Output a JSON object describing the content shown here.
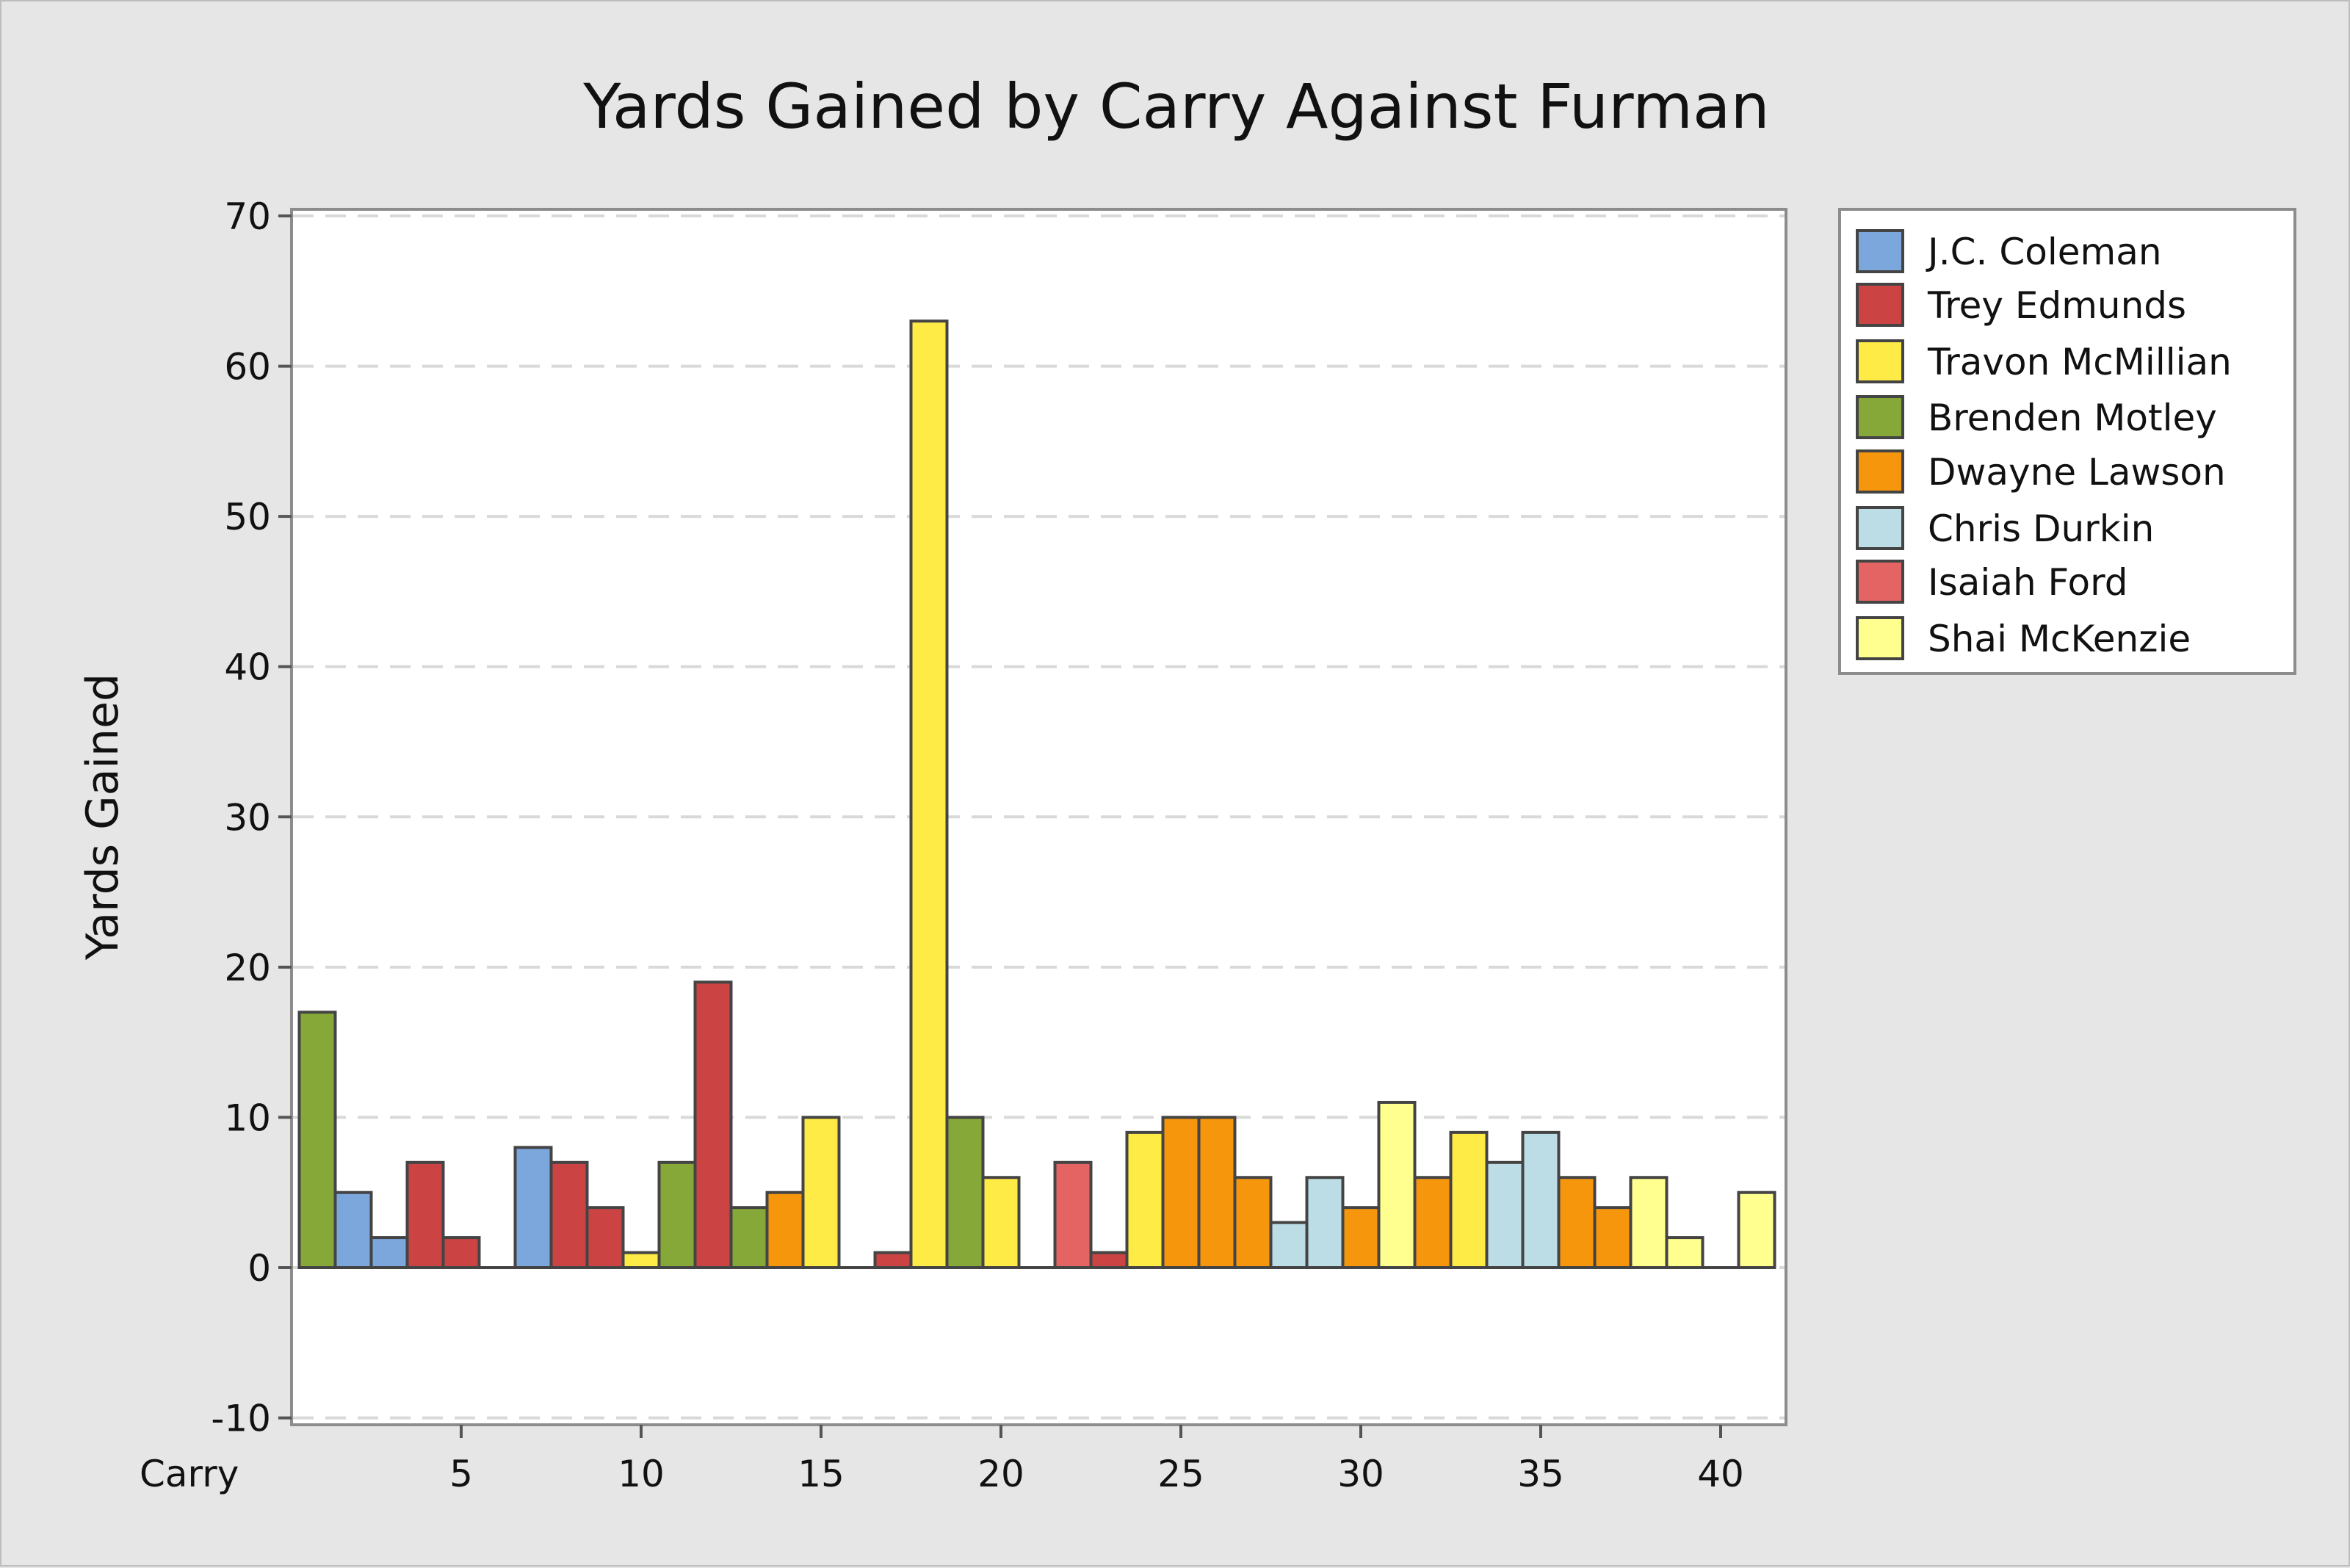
{
  "chart_data": {
    "type": "bar",
    "title": "Yards Gained by Carry Against Furman",
    "xlabel": "Carry",
    "ylabel": "Yards Gained",
    "ylim": [
      -10,
      70
    ],
    "yticks": [
      -10,
      0,
      10,
      20,
      30,
      40,
      50,
      60,
      70
    ],
    "xticks": [
      5,
      10,
      15,
      20,
      25,
      30,
      35,
      40
    ],
    "xlim": [
      0.5,
      41.5
    ],
    "grid": "horizontal-dashed",
    "legend_position": "right",
    "series": [
      {
        "name": "J.C. Coleman",
        "color": "#7ba7dd",
        "points": [
          {
            "x": 2,
            "y": 5
          },
          {
            "x": 3,
            "y": 2
          },
          {
            "x": 7,
            "y": 8
          }
        ]
      },
      {
        "name": "Trey Edmunds",
        "color": "#cb4343",
        "points": [
          {
            "x": 4,
            "y": 7
          },
          {
            "x": 5,
            "y": 2
          },
          {
            "x": 8,
            "y": 7
          },
          {
            "x": 9,
            "y": 4
          },
          {
            "x": 12,
            "y": 19
          },
          {
            "x": 17,
            "y": 1
          },
          {
            "x": 23,
            "y": 1
          }
        ]
      },
      {
        "name": "Travon McMillian",
        "color": "#ffeb46",
        "points": [
          {
            "x": 10,
            "y": 1
          },
          {
            "x": 15,
            "y": 10
          },
          {
            "x": 18,
            "y": 63
          },
          {
            "x": 20,
            "y": 6
          },
          {
            "x": 24,
            "y": 9
          },
          {
            "x": 33,
            "y": 9
          }
        ]
      },
      {
        "name": "Brenden Motley",
        "color": "#86a838",
        "points": [
          {
            "x": 1,
            "y": 17
          },
          {
            "x": 11,
            "y": 7
          },
          {
            "x": 13,
            "y": 4
          },
          {
            "x": 19,
            "y": 10
          }
        ]
      },
      {
        "name": "Dwayne Lawson",
        "color": "#f5960c",
        "points": [
          {
            "x": 14,
            "y": 5
          },
          {
            "x": 25,
            "y": 10
          },
          {
            "x": 26,
            "y": 10
          },
          {
            "x": 27,
            "y": 6
          },
          {
            "x": 30,
            "y": 4
          },
          {
            "x": 32,
            "y": 6
          },
          {
            "x": 36,
            "y": 6
          },
          {
            "x": 37,
            "y": 4
          }
        ]
      },
      {
        "name": "Chris Durkin",
        "color": "#bcdce6",
        "points": [
          {
            "x": 28,
            "y": 3
          },
          {
            "x": 29,
            "y": 6
          },
          {
            "x": 34,
            "y": 7
          },
          {
            "x": 35,
            "y": 9
          }
        ]
      },
      {
        "name": "Isaiah Ford",
        "color": "#e46464",
        "points": [
          {
            "x": 22,
            "y": 7
          }
        ]
      },
      {
        "name": "Shai McKenzie",
        "color": "#ffff8f",
        "points": [
          {
            "x": 31,
            "y": 11
          },
          {
            "x": 38,
            "y": 6
          },
          {
            "x": 39,
            "y": 2
          },
          {
            "x": 41,
            "y": 5
          }
        ]
      }
    ]
  }
}
